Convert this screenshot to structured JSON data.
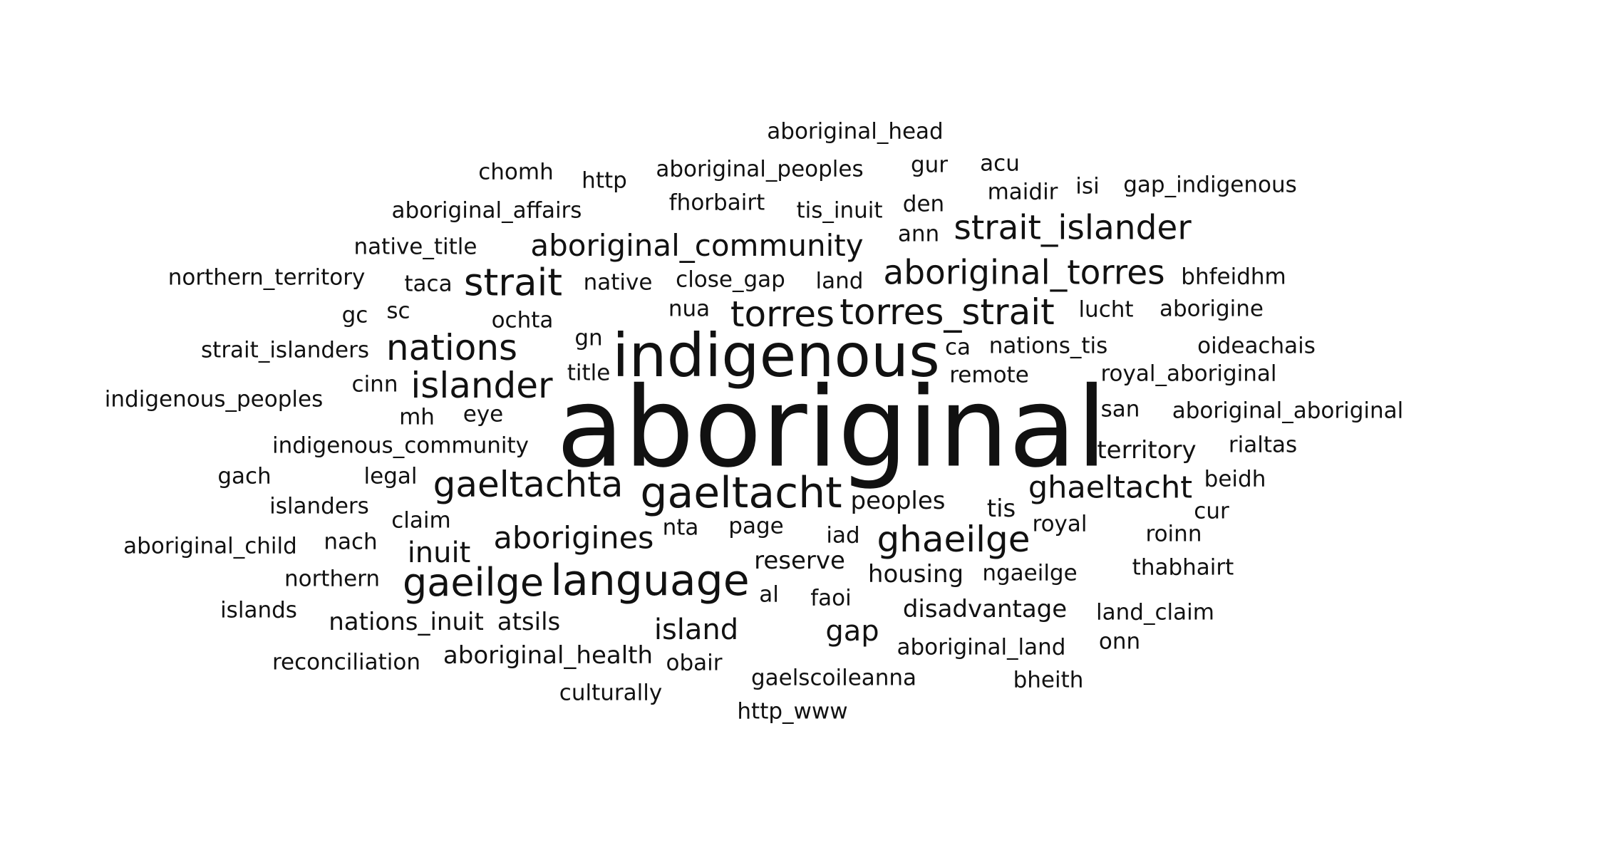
{
  "text_color": "#111111",
  "background_color": "#ffffff",
  "words": [
    {
      "text": "aboriginal_head",
      "weight": 1.0
    },
    {
      "text": "chomh",
      "weight": 1.0
    },
    {
      "text": "http",
      "weight": 1.0
    },
    {
      "text": "aboriginal_peoples",
      "weight": 1.0
    },
    {
      "text": "gur",
      "weight": 1.0
    },
    {
      "text": "acu",
      "weight": 1.0
    },
    {
      "text": "maidir",
      "weight": 1.0
    },
    {
      "text": "isi",
      "weight": 1.0
    },
    {
      "text": "gap_indigenous",
      "weight": 1.0
    },
    {
      "text": "fhorbairt",
      "weight": 1.0
    },
    {
      "text": "aboriginal_affairs",
      "weight": 1.0
    },
    {
      "text": "tis_inuit",
      "weight": 1.0
    },
    {
      "text": "den",
      "weight": 1.0
    },
    {
      "text": "strait_islander",
      "weight": 1.5
    },
    {
      "text": "ann",
      "weight": 1.0
    },
    {
      "text": "native_title",
      "weight": 1.0
    },
    {
      "text": "aboriginal_community",
      "weight": 1.35
    },
    {
      "text": "aboriginal_torres",
      "weight": 1.5
    },
    {
      "text": "northern_territory",
      "weight": 1.0
    },
    {
      "text": "taca",
      "weight": 1.0
    },
    {
      "text": "strait",
      "weight": 1.7
    },
    {
      "text": "native",
      "weight": 1.0
    },
    {
      "text": "close_gap",
      "weight": 1.0
    },
    {
      "text": "land",
      "weight": 1.0
    },
    {
      "text": "bhfeidhm",
      "weight": 1.0
    },
    {
      "text": "gc",
      "weight": 1.0
    },
    {
      "text": "sc",
      "weight": 1.0
    },
    {
      "text": "ochta",
      "weight": 1.0
    },
    {
      "text": "nua",
      "weight": 1.0
    },
    {
      "text": "torres",
      "weight": 1.6
    },
    {
      "text": "torres_strait",
      "weight": 1.6
    },
    {
      "text": "lucht",
      "weight": 1.0
    },
    {
      "text": "aborigine",
      "weight": 1.0
    },
    {
      "text": "strait_islanders",
      "weight": 1.0
    },
    {
      "text": "nations",
      "weight": 1.6
    },
    {
      "text": "gn",
      "weight": 1.0
    },
    {
      "text": "indigenous",
      "weight": 2.7
    },
    {
      "text": "ca",
      "weight": 1.0
    },
    {
      "text": "nations_tis",
      "weight": 1.0
    },
    {
      "text": "oideachais",
      "weight": 1.0
    },
    {
      "text": "title",
      "weight": 1.0
    },
    {
      "text": "cinn",
      "weight": 1.0
    },
    {
      "text": "islander",
      "weight": 1.6
    },
    {
      "text": "remote",
      "weight": 1.0
    },
    {
      "text": "royal_aboriginal",
      "weight": 1.0
    },
    {
      "text": "indigenous_peoples",
      "weight": 1.0
    },
    {
      "text": "mh",
      "weight": 1.0
    },
    {
      "text": "eye",
      "weight": 1.0
    },
    {
      "text": "aboriginal",
      "weight": 5.0
    },
    {
      "text": "san",
      "weight": 1.0
    },
    {
      "text": "aboriginal_aboriginal",
      "weight": 1.0
    },
    {
      "text": "indigenous_community",
      "weight": 1.0
    },
    {
      "text": "territory",
      "weight": 1.1
    },
    {
      "text": "rialtas",
      "weight": 1.0
    },
    {
      "text": "gach",
      "weight": 1.0
    },
    {
      "text": "legal",
      "weight": 1.0
    },
    {
      "text": "gaeltachta",
      "weight": 1.6
    },
    {
      "text": "gaeltacht",
      "weight": 1.95
    },
    {
      "text": "ghaeltacht",
      "weight": 1.4
    },
    {
      "text": "beidh",
      "weight": 1.0
    },
    {
      "text": "islanders",
      "weight": 1.0
    },
    {
      "text": "peoples",
      "weight": 1.1
    },
    {
      "text": "tis",
      "weight": 1.1
    },
    {
      "text": "cur",
      "weight": 1.0
    },
    {
      "text": "claim",
      "weight": 1.0
    },
    {
      "text": "nta",
      "weight": 1.0
    },
    {
      "text": "page",
      "weight": 1.0
    },
    {
      "text": "royal",
      "weight": 1.0
    },
    {
      "text": "aborigines",
      "weight": 1.4
    },
    {
      "text": "roinn",
      "weight": 1.0
    },
    {
      "text": "aboriginal_child",
      "weight": 1.0
    },
    {
      "text": "nach",
      "weight": 1.0
    },
    {
      "text": "inuit",
      "weight": 1.3
    },
    {
      "text": "iad",
      "weight": 1.0
    },
    {
      "text": "ghaeilge",
      "weight": 1.6
    },
    {
      "text": "reserve",
      "weight": 1.1
    },
    {
      "text": "thabhairt",
      "weight": 1.0
    },
    {
      "text": "northern",
      "weight": 1.0
    },
    {
      "text": "gaeilge",
      "weight": 1.75
    },
    {
      "text": "language",
      "weight": 1.95
    },
    {
      "text": "housing",
      "weight": 1.1
    },
    {
      "text": "ngaeilge",
      "weight": 1.0
    },
    {
      "text": "al",
      "weight": 1.0
    },
    {
      "text": "faoi",
      "weight": 1.0
    },
    {
      "text": "disadvantage",
      "weight": 1.1
    },
    {
      "text": "land_claim",
      "weight": 1.0
    },
    {
      "text": "islands",
      "weight": 1.0
    },
    {
      "text": "nations_inuit",
      "weight": 1.1
    },
    {
      "text": "atsils",
      "weight": 1.1
    },
    {
      "text": "island",
      "weight": 1.3
    },
    {
      "text": "gap",
      "weight": 1.3
    },
    {
      "text": "aboriginal_land",
      "weight": 1.0
    },
    {
      "text": "onn",
      "weight": 1.0
    },
    {
      "text": "reconciliation",
      "weight": 1.0
    },
    {
      "text": "aboriginal_health",
      "weight": 1.1
    },
    {
      "text": "obair",
      "weight": 1.0
    },
    {
      "text": "gaelscoileanna",
      "weight": 1.0
    },
    {
      "text": "bheith",
      "weight": 1.0
    },
    {
      "text": "culturally",
      "weight": 1.0
    },
    {
      "text": "http_www",
      "weight": 1.0
    }
  ]
}
